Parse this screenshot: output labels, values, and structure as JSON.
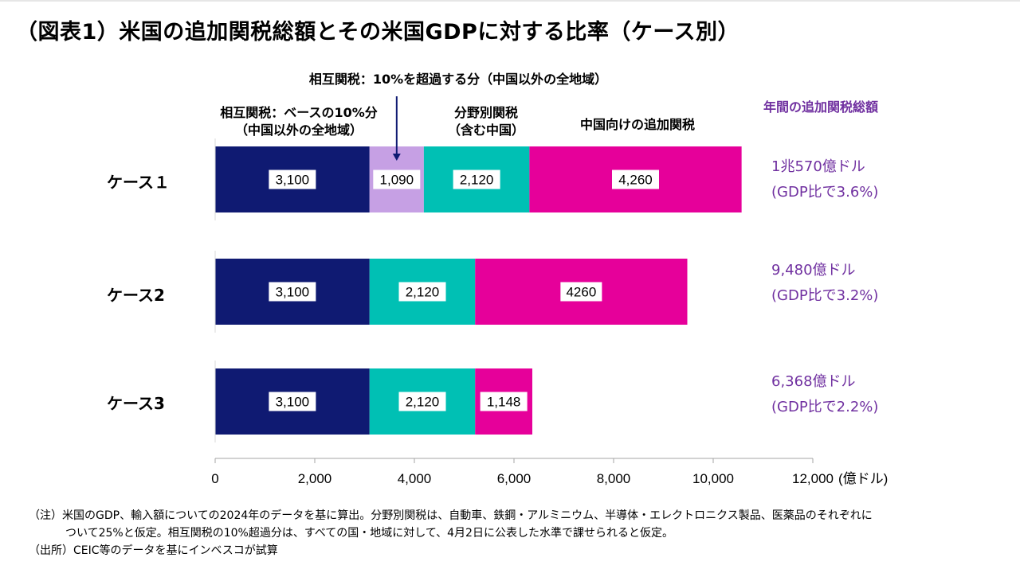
{
  "title": "（図表1）米国の追加関税総額とその米国GDPに対する比率（ケース別）",
  "headers": {
    "reciprocal_over_10": "相互関税：10%を超過する分（中国以外の全地域）",
    "reciprocal_base_line1": "相互関税：ベースの10%分",
    "reciprocal_base_line2": "（中国以外の全地域）",
    "sectoral_line1": "分野別関税",
    "sectoral_line2": "（含む中国）",
    "china": "中国向けの追加関税",
    "annual_total": "年間の追加関税総額"
  },
  "totals": [
    {
      "amount": "1兆570億ドル",
      "ratio": "(GDP比で3.6%)"
    },
    {
      "amount": "9,480億ドル",
      "ratio": "(GDP比で3.2%)"
    },
    {
      "amount": "6,368億ドル",
      "ratio": "(GDP比で2.2%)"
    }
  ],
  "notes": {
    "line1": "（注）米国のGDP、輸入額についての2024年のデータを基に算出。分野別関税は、自動車、鉄鋼・アルミニウム、半導体・エレクトロニクス製品、医薬品のそれぞれに",
    "line2": "ついて25%と仮定。相互関税の10%超過分は、すべての国・地域に対して、4月2日に公表した水準で課せられると仮定。",
    "line3": "（出所）CEIC等のデータを基にインベスコが試算"
  },
  "chart_data": {
    "type": "bar",
    "orientation": "horizontal",
    "stacked": true,
    "categories": [
      "ケース１",
      "ケース2",
      "ケース3"
    ],
    "series": [
      {
        "name": "相互関税：ベースの10%分（中国以外の全地域）",
        "color": "#0f1a72",
        "values": [
          3100,
          3100,
          3100
        ],
        "labels": [
          "3,100",
          "3,100",
          "3,100"
        ]
      },
      {
        "name": "相互関税：10%を超過する分（中国以外の全地域）",
        "color": "#c6a0e4",
        "values": [
          1090,
          0,
          0
        ],
        "labels": [
          "1,090",
          "",
          ""
        ]
      },
      {
        "name": "分野別関税（含む中国）",
        "color": "#00c0b4",
        "values": [
          2120,
          2120,
          2120
        ],
        "labels": [
          "2,120",
          "2,120",
          "2,120"
        ]
      },
      {
        "name": "中国向けの追加関税",
        "color": "#e6009a",
        "values": [
          4260,
          4260,
          1148
        ],
        "labels": [
          "4,260",
          "4260",
          "1,148"
        ]
      }
    ],
    "xlim": [
      0,
      12000
    ],
    "xticks": [
      0,
      2000,
      4000,
      6000,
      8000,
      10000,
      12000
    ],
    "xtick_labels": [
      "0",
      "2,000",
      "4,000",
      "6,000",
      "8,000",
      "10,000",
      "12,000"
    ],
    "unit_label": "(億ドル)",
    "xlabel": "",
    "ylabel": ""
  }
}
